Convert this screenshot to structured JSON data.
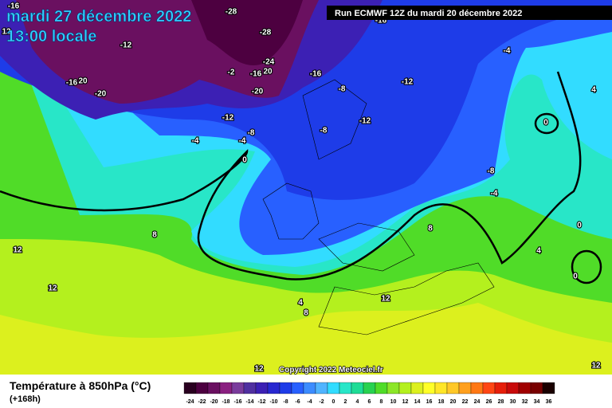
{
  "header": {
    "date": "mardi 27 décembre 2022",
    "time": "13:00 locale",
    "run": "Run ECMWF 12Z du mardi 20 décembre 2022"
  },
  "footer": {
    "variable": "Température à 850hPa (°C)",
    "lead": "(+168h)",
    "copyright": "Copyright 2022 Meteociel.fr"
  },
  "legend": {
    "ticks": [
      -24,
      -22,
      -20,
      -18,
      -16,
      -14,
      -12,
      -10,
      -8,
      -6,
      -4,
      -2,
      0,
      2,
      4,
      6,
      8,
      10,
      12,
      14,
      16,
      18,
      20,
      22,
      24,
      26,
      28,
      30,
      32,
      34,
      36
    ],
    "colors": [
      "#2a0020",
      "#4d0040",
      "#6a1060",
      "#8a2080",
      "#7a3c9c",
      "#5030a0",
      "#3c20b4",
      "#2828d0",
      "#1e3ce8",
      "#2860ff",
      "#3c8cff",
      "#50b4ff",
      "#32dcff",
      "#28e6c8",
      "#1edc96",
      "#28d250",
      "#50dc28",
      "#8ce628",
      "#b4f01e",
      "#dcf01e",
      "#ffff28",
      "#ffe628",
      "#ffc828",
      "#ffa01e",
      "#ff7814",
      "#ff4614",
      "#e61e0a",
      "#c80a0a",
      "#a00000",
      "#780000",
      "#1a0000"
    ]
  },
  "contour_labels": [
    -16,
    -28,
    -16,
    12,
    -12,
    -28,
    -4,
    -24,
    -2,
    -16,
    20,
    -16,
    -16,
    20,
    -12,
    -8,
    4,
    -20,
    -20,
    -12,
    -12,
    0,
    -8,
    -8,
    -4,
    -4,
    0,
    -8,
    -4,
    8,
    0,
    8,
    4,
    12,
    0,
    12,
    4,
    12,
    8,
    12,
    12
  ]
}
